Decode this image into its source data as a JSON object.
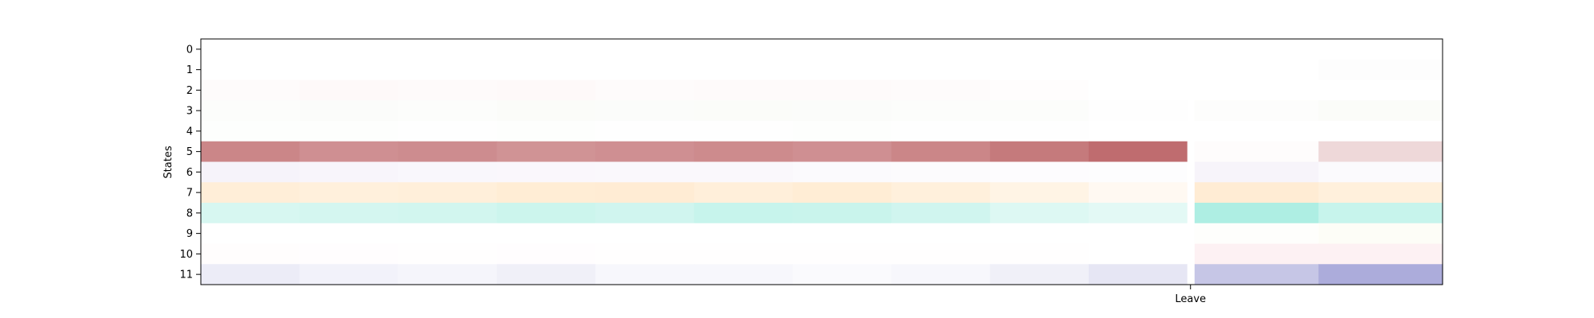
{
  "chart_data": {
    "type": "heatmap",
    "ylabel": "States",
    "xlabel": "",
    "grid": false,
    "y_categories": [
      "0",
      "1",
      "2",
      "3",
      "4",
      "5",
      "6",
      "7",
      "8",
      "9",
      "10",
      "11"
    ],
    "x_ticks": [
      {
        "label": "Leave",
        "position": 0.797
      }
    ],
    "leave_position": 0.797,
    "rows": [
      {
        "state": "0",
        "color": "#b0b0b0",
        "intensity": [
          0.0,
          0.0,
          0.0,
          0.0,
          0.0,
          0.0,
          0.0,
          0.0,
          0.0,
          0.0,
          0.0,
          0.0
        ]
      },
      {
        "state": "1",
        "color": "#b0b0b0",
        "intensity": [
          0.0,
          0.0,
          0.0,
          0.0,
          0.0,
          0.0,
          0.0,
          0.0,
          0.0,
          0.0,
          0.0,
          0.03
        ]
      },
      {
        "state": "2",
        "color": "#f2a0a0",
        "intensity": [
          0.04,
          0.06,
          0.05,
          0.06,
          0.04,
          0.05,
          0.05,
          0.04,
          0.02,
          0.0,
          0.0,
          0.0
        ]
      },
      {
        "state": "3",
        "color": "#c8d8b8",
        "intensity": [
          0.06,
          0.07,
          0.06,
          0.08,
          0.07,
          0.08,
          0.07,
          0.06,
          0.05,
          0.02,
          0.04,
          0.08
        ]
      },
      {
        "state": "4",
        "color": "#c8e0c8",
        "intensity": [
          0.04,
          0.03,
          0.02,
          0.03,
          0.02,
          0.02,
          0.03,
          0.02,
          0.02,
          0.0,
          0.0,
          0.0
        ]
      },
      {
        "state": "5",
        "color": "#bc6467",
        "intensity": [
          0.78,
          0.72,
          0.74,
          0.7,
          0.72,
          0.75,
          0.72,
          0.78,
          0.86,
          0.95,
          0.02,
          0.25
        ]
      },
      {
        "state": "6",
        "color": "#d8c8e8",
        "intensity": [
          0.22,
          0.18,
          0.15,
          0.14,
          0.12,
          0.12,
          0.1,
          0.08,
          0.06,
          0.04,
          0.2,
          0.1
        ]
      },
      {
        "state": "7",
        "color": "#ffd9a8",
        "intensity": [
          0.45,
          0.4,
          0.42,
          0.48,
          0.5,
          0.42,
          0.48,
          0.4,
          0.3,
          0.15,
          0.5,
          0.4
        ]
      },
      {
        "state": "8",
        "color": "#8ee8d8",
        "intensity": [
          0.35,
          0.38,
          0.4,
          0.45,
          0.42,
          0.5,
          0.48,
          0.42,
          0.3,
          0.25,
          0.72,
          0.5
        ]
      },
      {
        "state": "9",
        "color": "#f0f0c8",
        "intensity": [
          0.0,
          0.0,
          0.0,
          0.0,
          0.0,
          0.0,
          0.0,
          0.0,
          0.0,
          0.0,
          0.05,
          0.15
        ]
      },
      {
        "state": "10",
        "color": "#f8c8d0",
        "intensity": [
          0.04,
          0.03,
          0.02,
          0.03,
          0.02,
          0.02,
          0.02,
          0.02,
          0.02,
          0.0,
          0.25,
          0.25
        ]
      },
      {
        "state": "11",
        "color": "#8080c8",
        "intensity": [
          0.15,
          0.1,
          0.08,
          0.12,
          0.06,
          0.06,
          0.04,
          0.06,
          0.12,
          0.2,
          0.45,
          0.65
        ]
      }
    ],
    "x_bins": 12
  },
  "colors": {
    "axes": "#000000",
    "background": "#ffffff"
  }
}
